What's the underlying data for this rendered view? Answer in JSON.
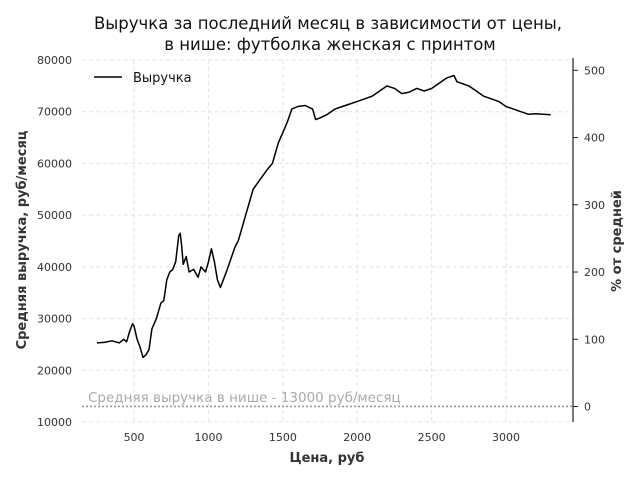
{
  "chart_data": {
    "type": "line",
    "title_line1": "Выручка за последний месяц в зависимости от цены,",
    "title_line2": "в нише: футболка женская с принтом",
    "xlabel": "Цена, руб",
    "ylabel": "Средняя выручка, руб/месяц",
    "ylabel_right": "% от средней",
    "xlim": [
      150,
      3450
    ],
    "ylim": [
      10000,
      80000
    ],
    "x_ticks": [
      500,
      1000,
      1500,
      2000,
      2500,
      3000
    ],
    "y_ticks": [
      10000,
      20000,
      30000,
      40000,
      50000,
      60000,
      70000,
      80000
    ],
    "y2_ticks": [
      0,
      100,
      200,
      300,
      400,
      500
    ],
    "y2_reference_value": 13000,
    "grid": true,
    "legend_position": "top-left",
    "series": [
      {
        "name": "Выручка",
        "color": "#000000",
        "x": [
          250,
          300,
          350,
          400,
          430,
          450,
          470,
          490,
          500,
          520,
          540,
          560,
          580,
          600,
          620,
          650,
          680,
          700,
          720,
          740,
          760,
          780,
          800,
          810,
          820,
          830,
          850,
          870,
          900,
          930,
          950,
          980,
          1000,
          1020,
          1040,
          1060,
          1080,
          1100,
          1120,
          1150,
          1180,
          1200,
          1250,
          1300,
          1350,
          1400,
          1430,
          1470,
          1500,
          1530,
          1560,
          1600,
          1650,
          1700,
          1720,
          1750,
          1800,
          1850,
          1900,
          1950,
          2000,
          2050,
          2100,
          2150,
          2200,
          2250,
          2300,
          2350,
          2400,
          2450,
          2500,
          2550,
          2600,
          2650,
          2670,
          2700,
          2750,
          2800,
          2850,
          2900,
          2950,
          3000,
          3050,
          3100,
          3150,
          3200,
          3250,
          3300
        ],
        "values": [
          25300,
          25400,
          25700,
          25300,
          26000,
          25500,
          27500,
          29000,
          28500,
          26000,
          24500,
          22500,
          23000,
          24000,
          28000,
          30000,
          33000,
          33500,
          37500,
          39000,
          39500,
          41000,
          46000,
          46500,
          44000,
          40500,
          42000,
          39000,
          39500,
          38000,
          40000,
          39000,
          41000,
          43500,
          41000,
          37500,
          36000,
          37500,
          39000,
          41500,
          44000,
          45000,
          50000,
          55000,
          57000,
          59000,
          60000,
          64000,
          66000,
          68000,
          70500,
          71000,
          71200,
          70500,
          68500,
          68800,
          69500,
          70500,
          71000,
          71500,
          72000,
          72500,
          73000,
          74000,
          75000,
          74500,
          73500,
          73800,
          74500,
          74000,
          74500,
          75500,
          76500,
          77000,
          75800,
          75500,
          75000,
          74000,
          73000,
          72500,
          72000,
          71000,
          70500,
          70000,
          69500,
          69600,
          69500,
          69400
        ]
      }
    ],
    "reference_line": {
      "label": "Средняя выручка в нише - 13000 руб/месяц",
      "value": 13000,
      "color": "#999999"
    }
  }
}
